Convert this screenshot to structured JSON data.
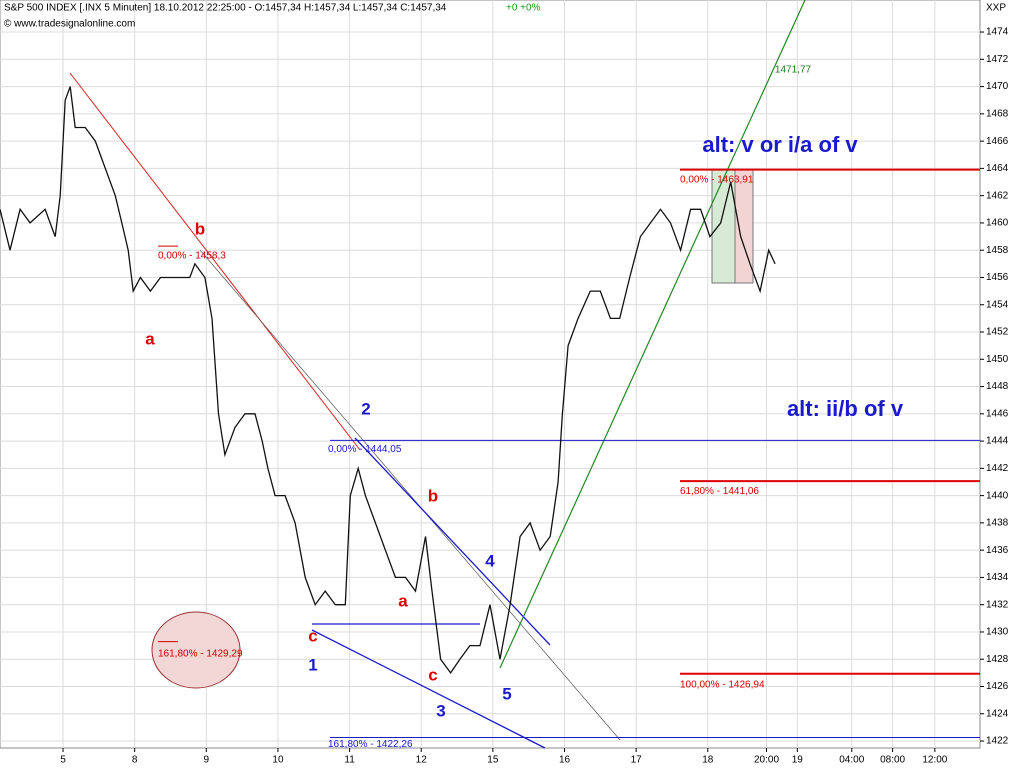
{
  "chart_data": {
    "type": "line",
    "header": "S&P 500 INDEX [.INX  5 Minuten] 18.10.2012 22:25:00 - O:1457,34 H:1457,34 L:1457,34 C:1457,34",
    "change": "+0 +0%",
    "copyright": "© www.tradesignalonline.com",
    "symbol": "XXP",
    "x": [
      -0.88,
      -0.74,
      -0.6,
      -0.46,
      -0.25,
      -0.11,
      -0.04,
      0.03,
      0.1,
      0.17,
      0.31,
      0.45,
      0.59,
      0.73,
      0.82,
      0.91,
      0.98,
      1.08,
      1.22,
      1.36,
      1.56,
      1.77,
      1.84,
      1.98,
      2.08,
      2.17,
      2.26,
      2.4,
      2.54,
      2.68,
      2.78,
      2.86,
      2.96,
      3.1,
      3.24,
      3.38,
      3.52,
      3.66,
      3.8,
      3.94,
      4.01,
      4.12,
      4.22,
      4.36,
      4.5,
      4.64,
      4.78,
      4.92,
      5.06,
      5.15,
      5.27,
      5.41,
      5.54,
      5.68,
      5.82,
      5.96,
      6.1,
      6.24,
      6.38,
      6.52,
      6.66,
      6.8,
      6.91,
      6.97,
      7.05,
      7.19,
      7.36,
      7.5,
      7.64,
      7.77,
      7.91,
      8.06,
      8.2,
      8.34,
      8.48,
      8.62,
      8.76,
      8.9,
      9.03,
      9.18,
      9.32,
      9.46,
      9.59,
      9.73,
      9.85,
      9.94
    ],
    "series": [
      {
        "color": "#111111",
        "values": [
          1461,
          1458,
          1461,
          1460,
          1461,
          1459,
          1462,
          1469,
          1470,
          1467,
          1467,
          1466,
          1464,
          1462,
          1460,
          1458,
          1455,
          1456,
          1455,
          1456,
          1456,
          1456,
          1457,
          1456,
          1453,
          1446,
          1443,
          1445,
          1446,
          1446,
          1444,
          1442,
          1440,
          1440,
          1438,
          1434,
          1432,
          1433,
          1432,
          1432,
          1440,
          1442,
          1440,
          1438,
          1436,
          1434,
          1434,
          1433,
          1437,
          1433,
          1428,
          1427,
          1428,
          1429,
          1429,
          1432,
          1428,
          1432,
          1437,
          1438,
          1436,
          1437,
          1441,
          1446,
          1451,
          1453,
          1455,
          1455,
          1453,
          1453,
          1456,
          1459,
          1460,
          1461,
          1460,
          1458,
          1461,
          1461,
          1459,
          1460,
          1463,
          1459,
          1457,
          1455,
          1458,
          1457
        ]
      }
    ],
    "xlim": [
      -0.88,
      12.8
    ],
    "xticks": [
      {
        "value": 0,
        "label": "5"
      },
      {
        "value": 1,
        "label": "8"
      },
      {
        "value": 2,
        "label": "9"
      },
      {
        "value": 3,
        "label": "10"
      },
      {
        "value": 4,
        "label": "11"
      },
      {
        "value": 5,
        "label": "12"
      },
      {
        "value": 6,
        "label": "15"
      },
      {
        "value": 7,
        "label": "16"
      },
      {
        "value": 8,
        "label": "17"
      },
      {
        "value": 9,
        "label": "18"
      },
      {
        "value": 9.82,
        "label": "20:00"
      },
      {
        "value": 10.25,
        "label": "19"
      },
      {
        "value": 11.01,
        "label": "04:00"
      },
      {
        "value": 11.58,
        "label": "08:00"
      },
      {
        "value": 12.17,
        "label": "12:00"
      }
    ],
    "ylim": [
      1421.49,
      1476.35
    ],
    "yticks": [
      1422,
      1424,
      1426,
      1428,
      1430,
      1432,
      1434,
      1436,
      1438,
      1440,
      1442,
      1444,
      1446,
      1448,
      1450,
      1452,
      1454,
      1456,
      1458,
      1460,
      1462,
      1464,
      1466,
      1468,
      1470,
      1472,
      1474
    ],
    "grid": true,
    "levels": [
      {
        "value": 1463.91,
        "label": "0,00% - 1463,91",
        "color": "#dd0000"
      },
      {
        "value": 1441.06,
        "label": "61,80% - 1441,06",
        "color": "#dd0000"
      },
      {
        "value": 1426.94,
        "label": "100,00% - 1426,94",
        "color": "#dd0000"
      },
      {
        "value": 1444.05,
        "label": "0,00% - 1444,05",
        "color": "#1a1acc"
      },
      {
        "value": 1422.26,
        "label": "161,80% - 1422,26",
        "color": "#1a1acc"
      },
      {
        "value": 1458.3,
        "label": "0,00% - 1458,3",
        "color": "#cc0000"
      },
      {
        "value": 1429.29,
        "label": "161,80% - 1429,29",
        "color": "#cc0000"
      }
    ],
    "annotations": [
      {
        "text": "b",
        "color": "#dd0000"
      },
      {
        "text": "a",
        "color": "#dd0000"
      },
      {
        "text": "2",
        "color": "#1a1acc"
      },
      {
        "text": "b",
        "color": "#dd0000"
      },
      {
        "text": "4",
        "color": "#1a1acc"
      },
      {
        "text": "a",
        "color": "#dd0000"
      },
      {
        "text": "c",
        "color": "#dd0000"
      },
      {
        "text": "1",
        "color": "#1a1acc"
      },
      {
        "text": "c",
        "color": "#dd0000"
      },
      {
        "text": "3",
        "color": "#1a1acc"
      },
      {
        "text": "5",
        "color": "#1a1acc"
      },
      {
        "text": "alt: v or i/a of v",
        "color": "#1a1acc"
      },
      {
        "text": "alt: ii/b of v",
        "color": "#1a1acc"
      },
      {
        "text": "1471,77",
        "color": "#227722"
      }
    ]
  }
}
